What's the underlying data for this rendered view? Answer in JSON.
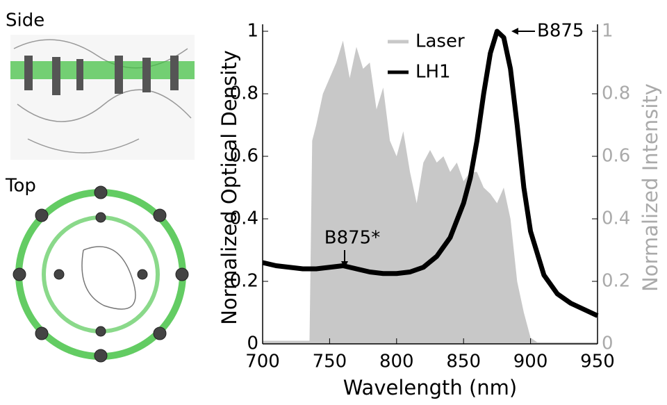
{
  "panels": {
    "side": "Side",
    "top": "Top"
  },
  "chart_data": {
    "type": "line",
    "xlabel": "Wavelength (nm)",
    "ylabel": "Normalized Optical Density",
    "y2label": "Normalized Intensity",
    "xlim": [
      700,
      950
    ],
    "xticks": [
      700,
      750,
      800,
      850,
      900,
      950
    ],
    "ylim": [
      0,
      1
    ],
    "yticks": [
      0,
      0.2,
      0.4,
      0.6,
      0.8,
      1
    ],
    "y2lim": [
      0,
      1
    ],
    "y2ticks": [
      0,
      0.2,
      0.4,
      0.6,
      0.8,
      1
    ],
    "legend": "top-center",
    "annotations": [
      "B875",
      "B875*"
    ],
    "series": [
      {
        "name": "Laser",
        "color": "#c8c8c8",
        "axis": "y2",
        "kind": "area",
        "x": [
          700,
          735,
          737,
          740,
          745,
          750,
          755,
          760,
          765,
          770,
          775,
          780,
          785,
          790,
          795,
          800,
          805,
          810,
          815,
          820,
          825,
          830,
          835,
          840,
          845,
          850,
          855,
          860,
          865,
          870,
          875,
          880,
          885,
          890,
          895,
          900,
          905,
          950
        ],
        "values": [
          0.01,
          0.01,
          0.65,
          0.7,
          0.8,
          0.85,
          0.9,
          0.97,
          0.85,
          0.95,
          0.88,
          0.9,
          0.75,
          0.82,
          0.65,
          0.6,
          0.68,
          0.55,
          0.45,
          0.58,
          0.62,
          0.58,
          0.6,
          0.55,
          0.58,
          0.52,
          0.55,
          0.55,
          0.5,
          0.48,
          0.45,
          0.5,
          0.4,
          0.2,
          0.1,
          0.02,
          0.005,
          0.005
        ]
      },
      {
        "name": "LH1",
        "color": "#000000",
        "kind": "line",
        "x": [
          700,
          710,
          720,
          730,
          740,
          750,
          760,
          770,
          780,
          790,
          800,
          810,
          820,
          830,
          840,
          850,
          855,
          860,
          865,
          870,
          875,
          880,
          885,
          890,
          895,
          900,
          910,
          920,
          930,
          940,
          950
        ],
        "values": [
          0.26,
          0.25,
          0.245,
          0.24,
          0.24,
          0.245,
          0.25,
          0.24,
          0.23,
          0.225,
          0.225,
          0.23,
          0.245,
          0.28,
          0.34,
          0.45,
          0.53,
          0.65,
          0.8,
          0.93,
          1.0,
          0.98,
          0.88,
          0.7,
          0.5,
          0.36,
          0.22,
          0.16,
          0.13,
          0.11,
          0.09
        ]
      }
    ]
  }
}
